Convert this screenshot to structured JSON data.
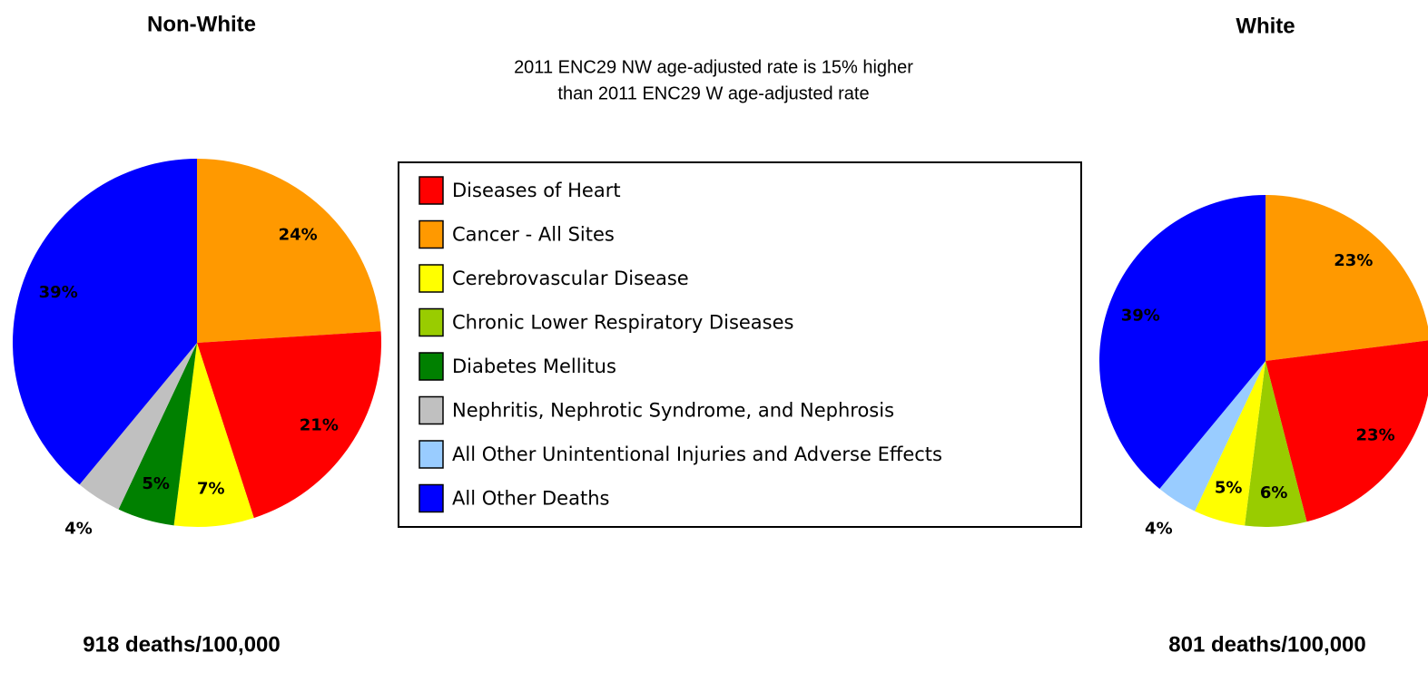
{
  "annotation": [
    "2011 ENC29 NW age-adjusted rate is 15% higher",
    "than 2011 ENC29 W age-adjusted rate"
  ],
  "legend": {
    "labels": [
      "Diseases of Heart",
      "Cancer - All Sites",
      "Cerebrovascular Disease",
      "Chronic Lower Respiratory Diseases",
      "Diabetes Mellitus",
      "Nephritis, Nephrotic Syndrome, and Nephrosis",
      "All Other Unintentional Injuries and Adverse Effects",
      "All Other Deaths"
    ],
    "colors": [
      "#ff0000",
      "#ff9900",
      "#ffff00",
      "#99cc00",
      "#008000",
      "#c0c0c0",
      "#99ccff",
      "#0000ff"
    ]
  },
  "chart_data": [
    {
      "type": "pie",
      "title": "Non-White",
      "total_label": "918 deaths/100,000",
      "categories": [
        "Cancer - All Sites",
        "Diseases of Heart",
        "Cerebrovascular Disease",
        "Diabetes Mellitus",
        "Nephritis, Nephrotic Syndrome, and Nephrosis",
        "All Other Deaths"
      ],
      "values": [
        24,
        21,
        7,
        5,
        4,
        39
      ],
      "value_labels": [
        "24%",
        "21%",
        "7%",
        "5%",
        "4%",
        "39%"
      ]
    },
    {
      "type": "pie",
      "title": "White",
      "total_label": "801 deaths/100,000",
      "categories": [
        "Cancer - All Sites",
        "Diseases of Heart",
        "Chronic Lower Respiratory Diseases",
        "Cerebrovascular Disease",
        "All Other Unintentional Injuries and Adverse Effects",
        "All Other Deaths"
      ],
      "values": [
        23,
        23,
        6,
        5,
        4,
        39
      ],
      "value_labels": [
        "23%",
        "23%",
        "6%",
        "5%",
        "4%",
        "39%"
      ]
    }
  ]
}
